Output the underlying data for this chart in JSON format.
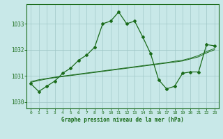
{
  "x": [
    0,
    1,
    2,
    3,
    4,
    5,
    6,
    7,
    8,
    9,
    10,
    11,
    12,
    13,
    14,
    15,
    16,
    17,
    18,
    19,
    20,
    21,
    22,
    23
  ],
  "main_line": [
    1030.7,
    1030.4,
    1030.6,
    1030.8,
    1031.1,
    1031.3,
    1031.6,
    1031.8,
    1032.1,
    1033.0,
    1033.1,
    1033.45,
    1033.0,
    1033.1,
    1032.5,
    1031.85,
    1030.85,
    1030.5,
    1030.6,
    1031.1,
    1031.15,
    1031.15,
    1032.2,
    1032.15
  ],
  "trend1": [
    1030.75,
    1030.82,
    1030.88,
    1030.93,
    1030.97,
    1031.01,
    1031.05,
    1031.09,
    1031.13,
    1031.17,
    1031.21,
    1031.25,
    1031.29,
    1031.33,
    1031.37,
    1031.41,
    1031.45,
    1031.49,
    1031.53,
    1031.57,
    1031.65,
    1031.73,
    1031.88,
    1032.0
  ],
  "trend2": [
    1030.78,
    1030.85,
    1030.9,
    1030.95,
    1030.99,
    1031.03,
    1031.07,
    1031.11,
    1031.15,
    1031.19,
    1031.23,
    1031.27,
    1031.31,
    1031.35,
    1031.39,
    1031.43,
    1031.47,
    1031.51,
    1031.56,
    1031.6,
    1031.68,
    1031.78,
    1031.93,
    1032.05
  ],
  "line_color": "#1a6b1a",
  "bg_color": "#c8e8e8",
  "grid_color": "#a0c8c8",
  "text_color": "#1a6b1a",
  "xlabel": "Graphe pression niveau de la mer (hPa)",
  "ylim": [
    1029.75,
    1033.75
  ],
  "yticks": [
    1030,
    1031,
    1032,
    1033
  ],
  "xticks": [
    0,
    1,
    2,
    3,
    4,
    5,
    6,
    7,
    8,
    9,
    10,
    11,
    12,
    13,
    14,
    15,
    16,
    17,
    18,
    19,
    20,
    21,
    22,
    23
  ]
}
